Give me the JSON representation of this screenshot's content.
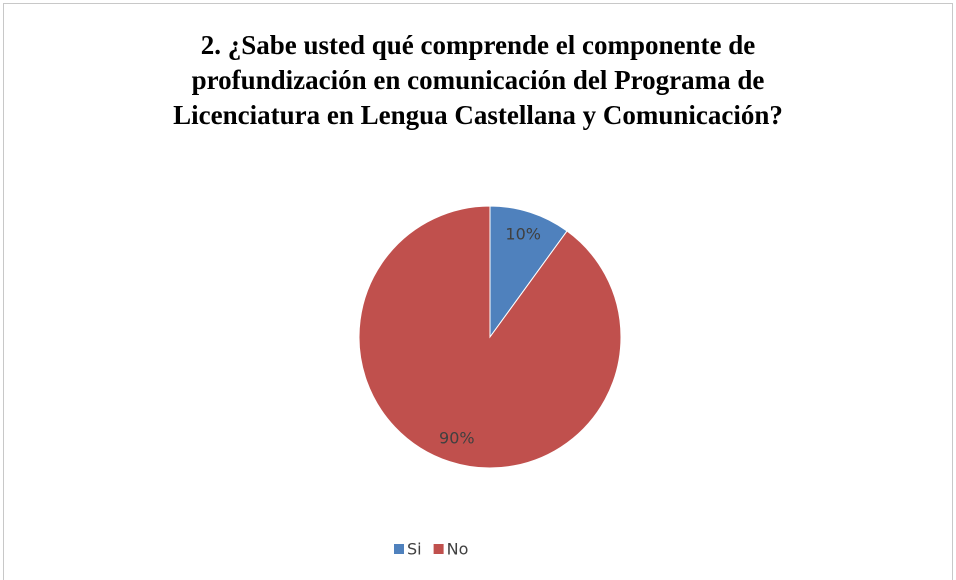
{
  "chart_data": {
    "type": "pie",
    "title": "2. ¿Sabe usted qué comprende el componente de profundización en comunicación del Programa de Licenciatura en Lengua Castellana y Comunicación?",
    "categories": [
      "Si",
      "No"
    ],
    "values": [
      10,
      90
    ],
    "value_labels": [
      "10%",
      "90%"
    ],
    "colors": [
      "#4f81bd",
      "#c0504d"
    ],
    "legend": "bottom"
  }
}
